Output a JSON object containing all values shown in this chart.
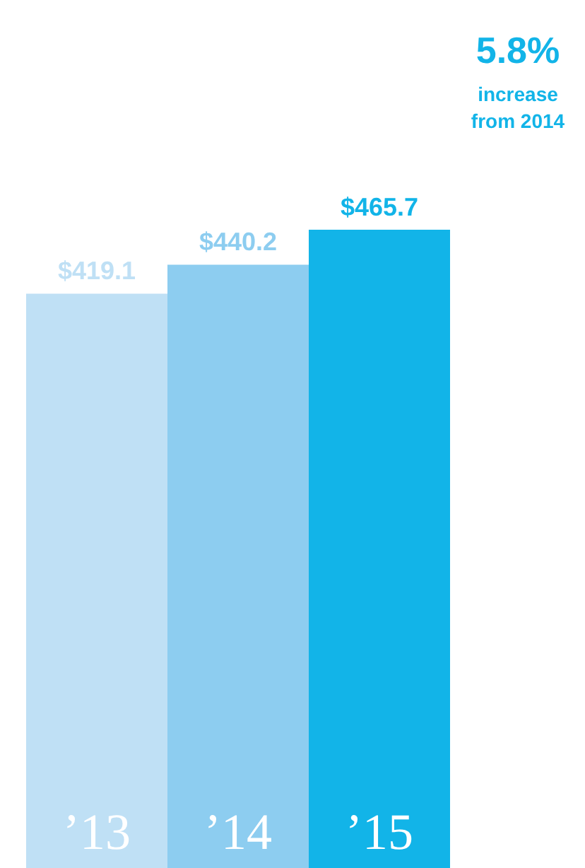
{
  "chart_data": {
    "type": "bar",
    "categories": [
      "’13",
      "’14",
      "’15"
    ],
    "values": [
      419.1,
      440.2,
      465.7
    ],
    "colors": [
      "#bfe0f5",
      "#8dcdf0",
      "#12b4e8"
    ],
    "value_labels": [
      "$419.1",
      "$440.2",
      "$465.7"
    ],
    "annotations": [
      "5.8%",
      "increase from 2014"
    ],
    "grid": false
  }
}
